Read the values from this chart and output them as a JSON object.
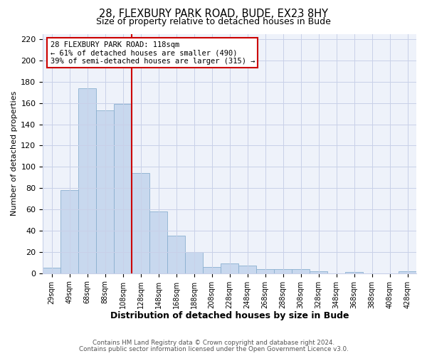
{
  "title1": "28, FLEXBURY PARK ROAD, BUDE, EX23 8HY",
  "title2": "Size of property relative to detached houses in Bude",
  "xlabel": "Distribution of detached houses by size in Bude",
  "ylabel": "Number of detached properties",
  "bar_labels": [
    "29sqm",
    "49sqm",
    "68sqm",
    "88sqm",
    "108sqm",
    "128sqm",
    "148sqm",
    "168sqm",
    "188sqm",
    "208sqm",
    "228sqm",
    "248sqm",
    "268sqm",
    "288sqm",
    "308sqm",
    "328sqm",
    "348sqm",
    "368sqm",
    "388sqm",
    "408sqm",
    "428sqm"
  ],
  "bar_values": [
    5,
    78,
    174,
    153,
    159,
    94,
    58,
    35,
    20,
    6,
    9,
    7,
    4,
    4,
    4,
    2,
    0,
    1,
    0,
    0,
    2
  ],
  "bar_color": "#c8d8ee",
  "bar_edge_color": "#8ab0d0",
  "vline_x": 4.5,
  "vline_color": "#cc0000",
  "ylim": [
    0,
    225
  ],
  "yticks": [
    0,
    20,
    40,
    60,
    80,
    100,
    120,
    140,
    160,
    180,
    200,
    220
  ],
  "annotation_title": "28 FLEXBURY PARK ROAD: 118sqm",
  "annotation_line1": "← 61% of detached houses are smaller (490)",
  "annotation_line2": "39% of semi-detached houses are larger (315) →",
  "annotation_box_color": "#ffffff",
  "annotation_box_edge": "#cc0000",
  "footer1": "Contains HM Land Registry data © Crown copyright and database right 2024.",
  "footer2": "Contains public sector information licensed under the Open Government Licence v3.0.",
  "bg_color": "#ffffff",
  "plot_bg_color": "#eef2fa",
  "grid_color": "#c8d0e8"
}
